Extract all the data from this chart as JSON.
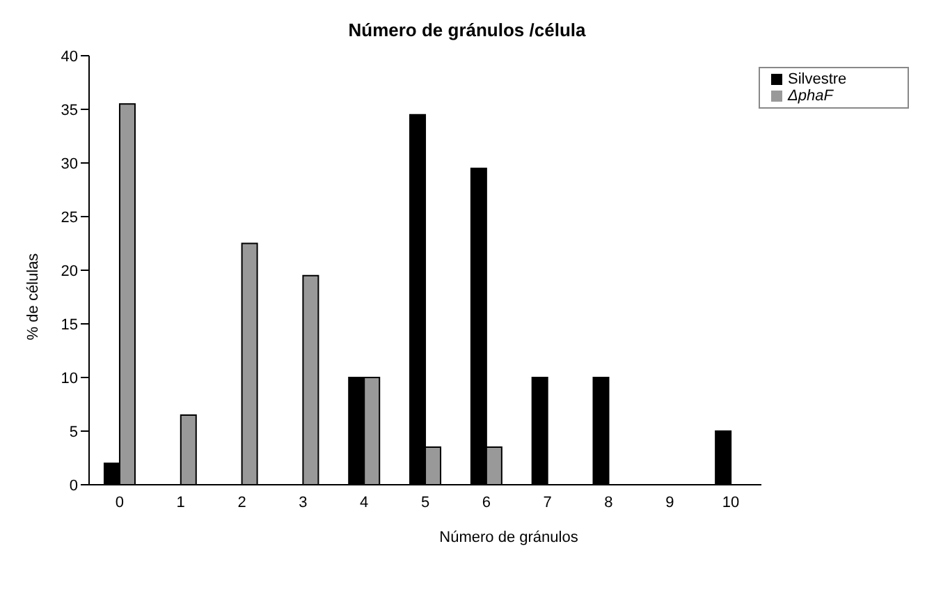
{
  "chart_data": {
    "type": "bar",
    "title": "Número de gránulos /célula",
    "xlabel": "Número de gránulos",
    "ylabel": "% de células",
    "categories": [
      "0",
      "1",
      "2",
      "3",
      "4",
      "5",
      "6",
      "7",
      "8",
      "9",
      "10"
    ],
    "series": [
      {
        "name": "Silvestre",
        "color": "#000000",
        "values": [
          2,
          0,
          0,
          0,
          10,
          34.5,
          29.5,
          10,
          10,
          0,
          5
        ]
      },
      {
        "name": "ΔphaF",
        "color": "#999999",
        "values": [
          35.5,
          6.5,
          22.5,
          19.5,
          10,
          3.5,
          3.5,
          0,
          0,
          0,
          0
        ]
      }
    ],
    "ylim": [
      0,
      40
    ],
    "yticks": [
      0,
      5,
      10,
      15,
      20,
      25,
      30,
      35,
      40
    ],
    "grid": false,
    "legend": "top right"
  }
}
